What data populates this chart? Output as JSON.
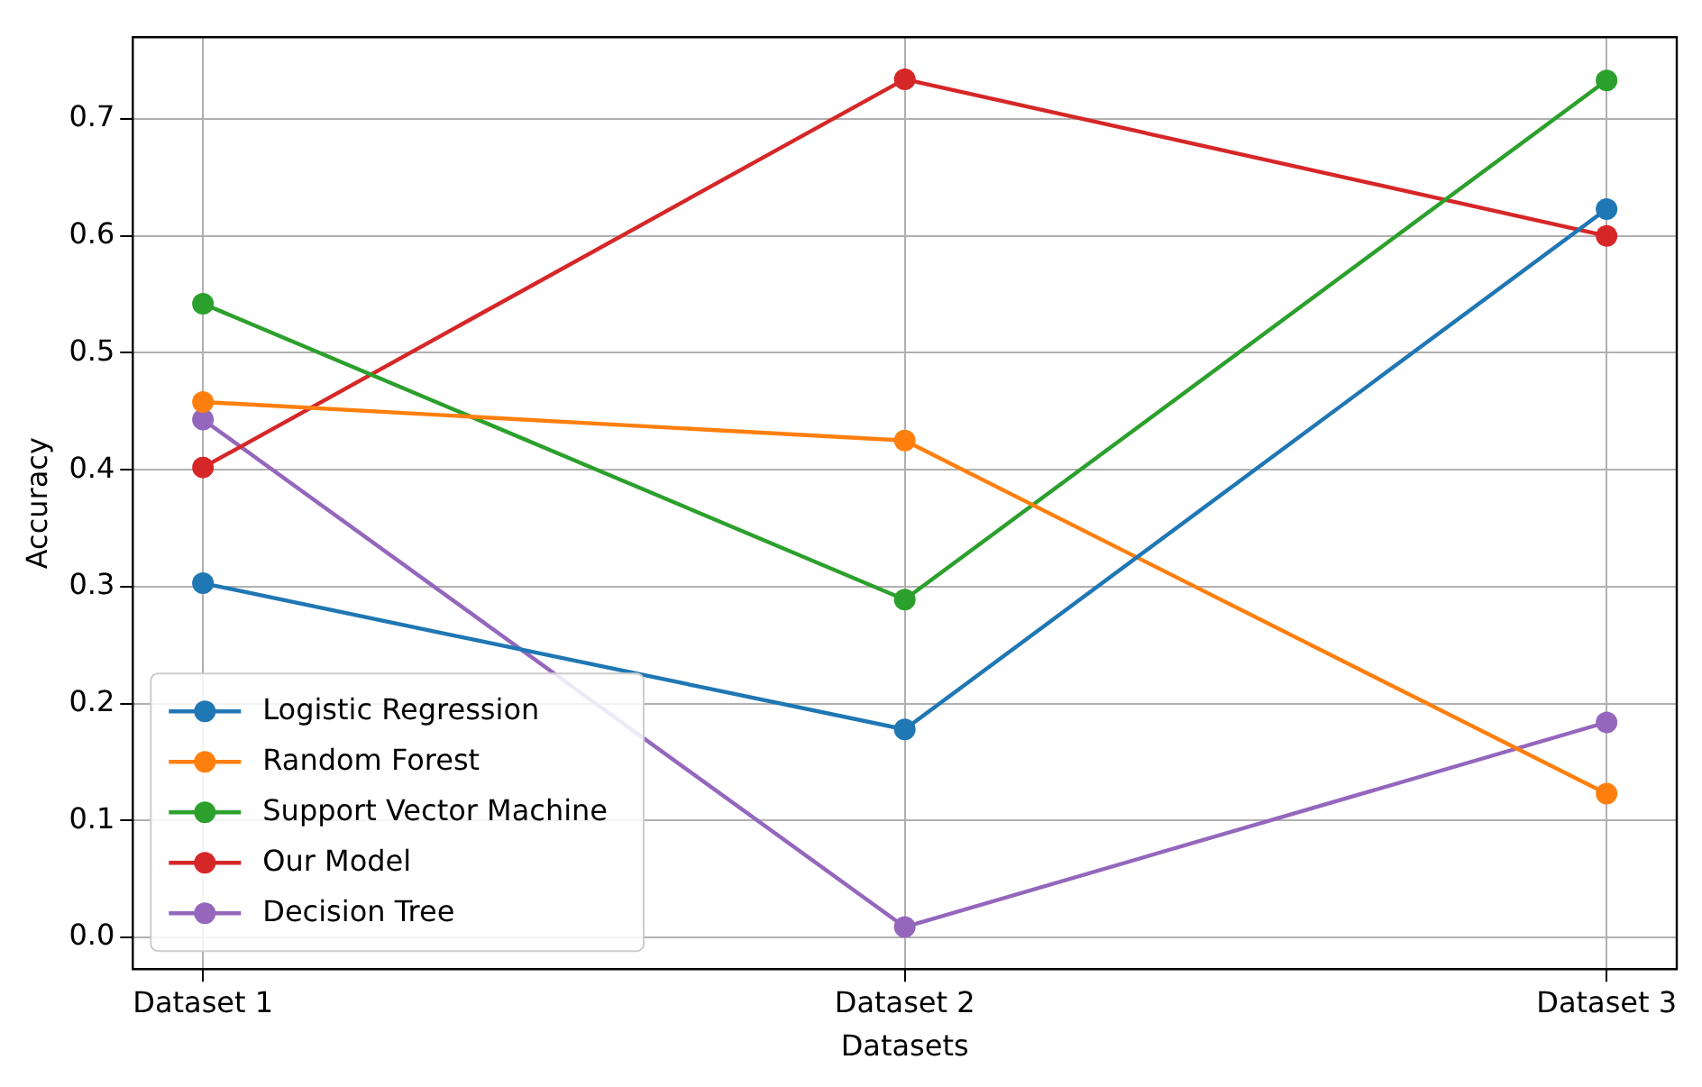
{
  "chart_data": {
    "type": "line",
    "xlabel": "Datasets",
    "ylabel": "Accuracy",
    "categories": [
      "Dataset 1",
      "Dataset 2",
      "Dataset 3"
    ],
    "series": [
      {
        "name": "Logistic Regression",
        "color": "#1f77b4",
        "values": [
          0.303,
          0.178,
          0.623
        ]
      },
      {
        "name": "Random Forest",
        "color": "#ff7f0e",
        "values": [
          0.458,
          0.425,
          0.123
        ]
      },
      {
        "name": "Support Vector Machine",
        "color": "#2ca02c",
        "values": [
          0.542,
          0.289,
          0.733
        ]
      },
      {
        "name": "Our Model",
        "color": "#d62728",
        "values": [
          0.402,
          0.734,
          0.6
        ]
      },
      {
        "name": "Decision Tree",
        "color": "#9467bd",
        "values": [
          0.443,
          0.009,
          0.184
        ]
      }
    ],
    "ylim": [
      -0.027,
      0.77
    ],
    "yticks": [
      {
        "value": 0,
        "label": "0.0"
      },
      0.1,
      0.2,
      0.3,
      0.4,
      0.5,
      0.6,
      0.7
    ],
    "grid": true,
    "legend": "bottom left",
    "marker": "circle",
    "line_style": "solid"
  }
}
